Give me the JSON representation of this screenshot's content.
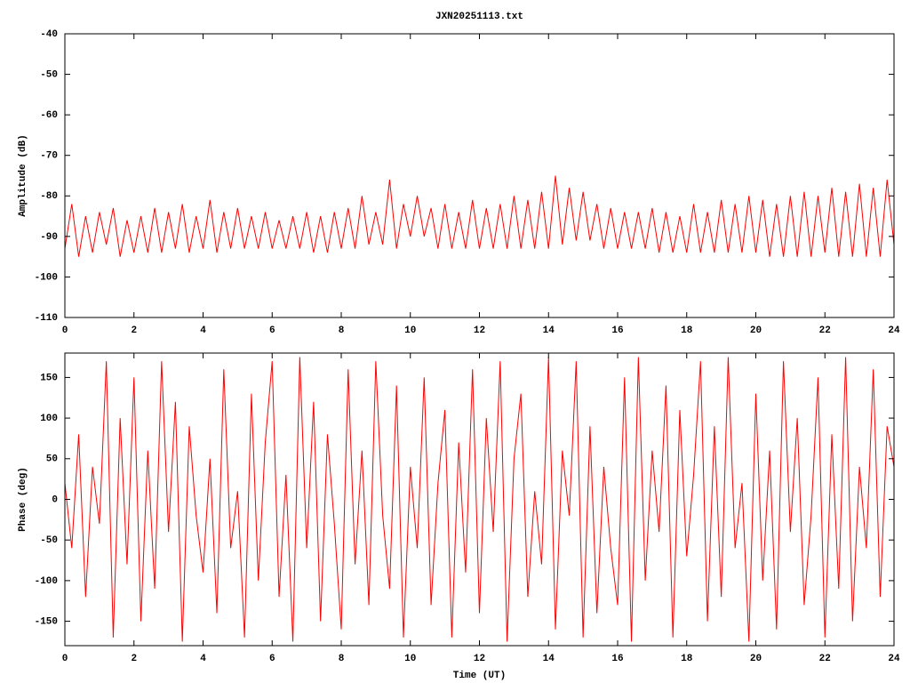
{
  "chart_data": [
    {
      "type": "line",
      "title": "JXN20251113.txt",
      "ylabel": "Amplitude (dB)",
      "xlim": [
        0,
        24
      ],
      "xticks": [
        0,
        2,
        4,
        6,
        8,
        10,
        12,
        14,
        16,
        18,
        20,
        22,
        24
      ],
      "ylim": [
        -110,
        -40
      ],
      "yticks": [
        -110,
        -100,
        -90,
        -80,
        -70,
        -60,
        -50,
        -40
      ],
      "x": [
        0,
        0.2,
        0.4,
        0.6,
        0.8,
        1,
        1.2,
        1.4,
        1.6,
        1.8,
        2,
        2.2,
        2.4,
        2.6,
        2.8,
        3,
        3.2,
        3.4,
        3.6,
        3.8,
        4,
        4.2,
        4.4,
        4.6,
        4.8,
        5,
        5.2,
        5.4,
        5.6,
        5.8,
        6,
        6.2,
        6.4,
        6.6,
        6.8,
        7,
        7.2,
        7.4,
        7.6,
        7.8,
        8,
        8.2,
        8.4,
        8.6,
        8.8,
        9,
        9.2,
        9.4,
        9.6,
        9.8,
        10,
        10.2,
        10.4,
        10.6,
        10.8,
        11,
        11.2,
        11.4,
        11.6,
        11.8,
        12,
        12.2,
        12.4,
        12.6,
        12.8,
        13,
        13.2,
        13.4,
        13.6,
        13.8,
        14,
        14.2,
        14.4,
        14.6,
        14.8,
        15,
        15.2,
        15.4,
        15.6,
        15.8,
        16,
        16.2,
        16.4,
        16.6,
        16.8,
        17,
        17.2,
        17.4,
        17.6,
        17.8,
        18,
        18.2,
        18.4,
        18.6,
        18.8,
        19,
        19.2,
        19.4,
        19.6,
        19.8,
        20,
        20.2,
        20.4,
        20.6,
        20.8,
        21,
        21.2,
        21.4,
        21.6,
        21.8,
        22,
        22.2,
        22.4,
        22.6,
        22.8,
        23,
        23.2,
        23.4,
        23.6,
        23.8,
        24
      ],
      "series": [
        {
          "color": "#ff0000",
          "values": [
            -93,
            -82,
            -95,
            -85,
            -94,
            -84,
            -92,
            -83,
            -95,
            -86,
            -94,
            -85,
            -94,
            -83,
            -94,
            -84,
            -93,
            -82,
            -94,
            -85,
            -93,
            -81,
            -94,
            -84,
            -93,
            -83,
            -93,
            -85,
            -93,
            -84,
            -93,
            -86,
            -93,
            -85,
            -93,
            -84,
            -94,
            -85,
            -94,
            -84,
            -93,
            -83,
            -93,
            -80,
            -92,
            -84,
            -92,
            -76,
            -93,
            -82,
            -90,
            -80,
            -90,
            -83,
            -93,
            -82,
            -93,
            -84,
            -93,
            -81,
            -93,
            -83,
            -93,
            -82,
            -93,
            -80,
            -93,
            -81,
            -93,
            -79,
            -93,
            -75,
            -92,
            -78,
            -91,
            -79,
            -91,
            -82,
            -93,
            -83,
            -93,
            -84,
            -93,
            -84,
            -93,
            -83,
            -94,
            -84,
            -94,
            -85,
            -94,
            -82,
            -94,
            -84,
            -94,
            -81,
            -94,
            -82,
            -94,
            -80,
            -94,
            -81,
            -95,
            -82,
            -95,
            -80,
            -95,
            -79,
            -95,
            -80,
            -94,
            -78,
            -95,
            -79,
            -95,
            -77,
            -95,
            -78,
            -95,
            -76,
            -92
          ]
        }
      ]
    },
    {
      "type": "line",
      "ylabel": "Phase (deg)",
      "xlabel": "Time (UT)",
      "xlim": [
        0,
        24
      ],
      "xticks": [
        0,
        2,
        4,
        6,
        8,
        10,
        12,
        14,
        16,
        18,
        20,
        22,
        24
      ],
      "ylim": [
        -180,
        180
      ],
      "yticks": [
        -150,
        -100,
        -50,
        0,
        50,
        100,
        150
      ],
      "x": [
        0,
        0.2,
        0.4,
        0.6,
        0.8,
        1,
        1.2,
        1.4,
        1.6,
        1.8,
        2,
        2.2,
        2.4,
        2.6,
        2.8,
        3,
        3.2,
        3.4,
        3.6,
        3.8,
        4,
        4.2,
        4.4,
        4.6,
        4.8,
        5,
        5.2,
        5.4,
        5.6,
        5.8,
        6,
        6.2,
        6.4,
        6.6,
        6.8,
        7,
        7.2,
        7.4,
        7.6,
        7.8,
        8,
        8.2,
        8.4,
        8.6,
        8.8,
        9,
        9.2,
        9.4,
        9.6,
        9.8,
        10,
        10.2,
        10.4,
        10.6,
        10.8,
        11,
        11.2,
        11.4,
        11.6,
        11.8,
        12,
        12.2,
        12.4,
        12.6,
        12.8,
        13,
        13.2,
        13.4,
        13.6,
        13.8,
        14,
        14.2,
        14.4,
        14.6,
        14.8,
        15,
        15.2,
        15.4,
        15.6,
        15.8,
        16,
        16.2,
        16.4,
        16.6,
        16.8,
        17,
        17.2,
        17.4,
        17.6,
        17.8,
        18,
        18.2,
        18.4,
        18.6,
        18.8,
        19,
        19.2,
        19.4,
        19.6,
        19.8,
        20,
        20.2,
        20.4,
        20.6,
        20.8,
        21,
        21.2,
        21.4,
        21.6,
        21.8,
        22,
        22.2,
        22.4,
        22.6,
        22.8,
        23,
        23.2,
        23.4,
        23.6,
        23.8,
        24
      ],
      "series": [
        {
          "color": "#ff0000",
          "values": [
            20,
            -60,
            80,
            -120,
            40,
            -30,
            170,
            -170,
            100,
            -80,
            150,
            -150,
            60,
            -110,
            170,
            -40,
            120,
            -175,
            90,
            -20,
            -90,
            50,
            -140,
            160,
            -60,
            10,
            -170,
            130,
            -100,
            70,
            170,
            -120,
            30,
            -175,
            175,
            -60,
            120,
            -150,
            80,
            -30,
            -160,
            160,
            -80,
            60,
            -130,
            170,
            -20,
            -110,
            140,
            -170,
            40,
            -60,
            150,
            -130,
            20,
            110,
            -170,
            70,
            -90,
            160,
            -140,
            100,
            -40,
            170,
            -175,
            50,
            130,
            -120,
            10,
            -80,
            175,
            -160,
            60,
            -20,
            170,
            -170,
            90,
            -140,
            40,
            -60,
            -130,
            150,
            -175,
            175,
            -100,
            60,
            -40,
            140,
            -170,
            110,
            -70,
            30,
            170,
            -150,
            90,
            -120,
            175,
            -60,
            20,
            -175,
            130,
            -100,
            60,
            -160,
            170,
            -40,
            100,
            -130,
            -20,
            150,
            -170,
            80,
            -110,
            175,
            -150,
            40,
            -60,
            160,
            -120,
            90,
            40
          ]
        }
      ]
    }
  ]
}
